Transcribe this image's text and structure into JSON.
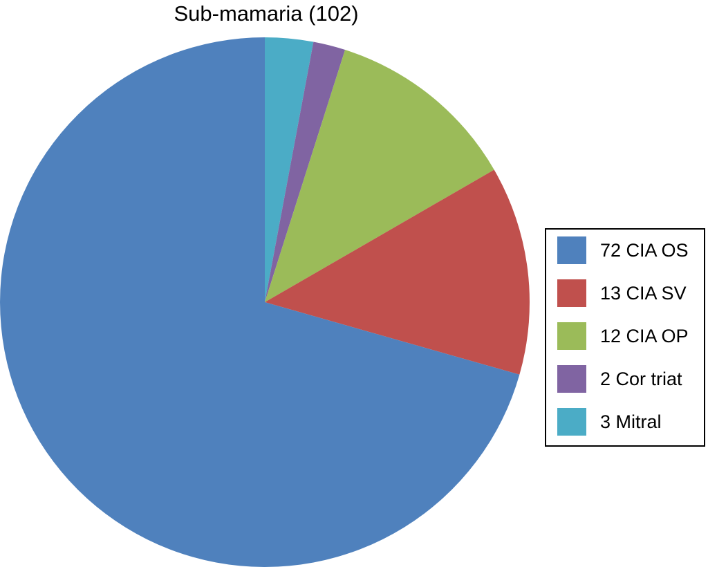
{
  "chart_data": {
    "type": "pie",
    "title": "Sub-mamaria (102)",
    "slices": [
      {
        "label": "72 CIA OS",
        "value": 72,
        "color": "#4F81BD"
      },
      {
        "label": "13 CIA SV",
        "value": 13,
        "color": "#C0504D"
      },
      {
        "label": "12 CIA OP",
        "value": 12,
        "color": "#9BBB59"
      },
      {
        "label": "2 Cor triat",
        "value": 2,
        "color": "#8064A2"
      },
      {
        "label": "3 Mitral",
        "value": 3,
        "color": "#4BACC6"
      }
    ],
    "legend_position": "right"
  }
}
